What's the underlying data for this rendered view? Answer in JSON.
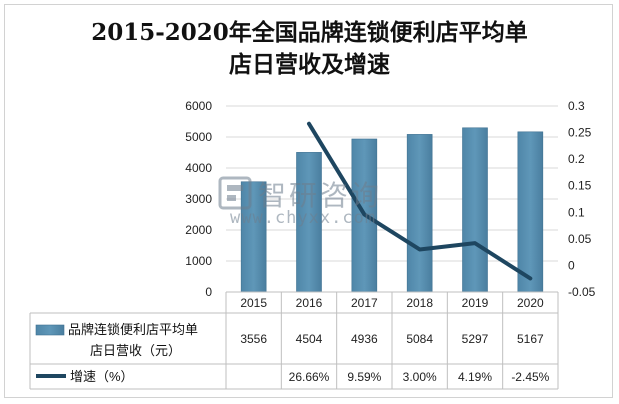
{
  "title_line1": "2015-2020年全国品牌连锁便利店平均单",
  "title_line2": "店日营收及增速",
  "watermark": {
    "text_cn": "智研咨询",
    "url": "www.chyxx.com",
    "logo_icon": "chyxx-logo-icon"
  },
  "colors": {
    "bar": "#5f97b8",
    "line": "#1e4660",
    "grid": "#d9d9d9",
    "table_border": "#bfbfbf"
  },
  "chart_data": {
    "type": "bar",
    "categories": [
      "2015",
      "2016",
      "2017",
      "2018",
      "2019",
      "2020"
    ],
    "series": [
      {
        "name": "品牌连锁便利店平均单店日营收（元）",
        "type": "bar",
        "axis": "left",
        "values": [
          3556,
          4504,
          4936,
          5084,
          5297,
          5167
        ]
      },
      {
        "name": "增速（%）",
        "type": "line",
        "axis": "right",
        "values": [
          null,
          0.2666,
          0.0959,
          0.03,
          0.0419,
          -0.0245
        ]
      }
    ],
    "y_left": {
      "min": 0,
      "max": 6000,
      "ticks": [
        "0",
        "1000",
        "2000",
        "3000",
        "4000",
        "5000",
        "6000"
      ]
    },
    "y_right": {
      "min": -0.05,
      "max": 0.3,
      "ticks": [
        "-0.05",
        "0",
        "0.05",
        "0.1",
        "0.15",
        "0.2",
        "0.25",
        "0.3"
      ]
    },
    "table": {
      "rows": [
        {
          "legend_line1": "品牌连锁便利店平均单",
          "legend_line2": "店日营收（元）",
          "cells": [
            "3556",
            "4504",
            "4936",
            "5084",
            "5297",
            "5167"
          ]
        },
        {
          "legend_line1": "增速（%）",
          "cells": [
            "",
            "26.66%",
            "9.59%",
            "3.00%",
            "4.19%",
            "-2.45%"
          ]
        }
      ]
    },
    "grid": true
  }
}
